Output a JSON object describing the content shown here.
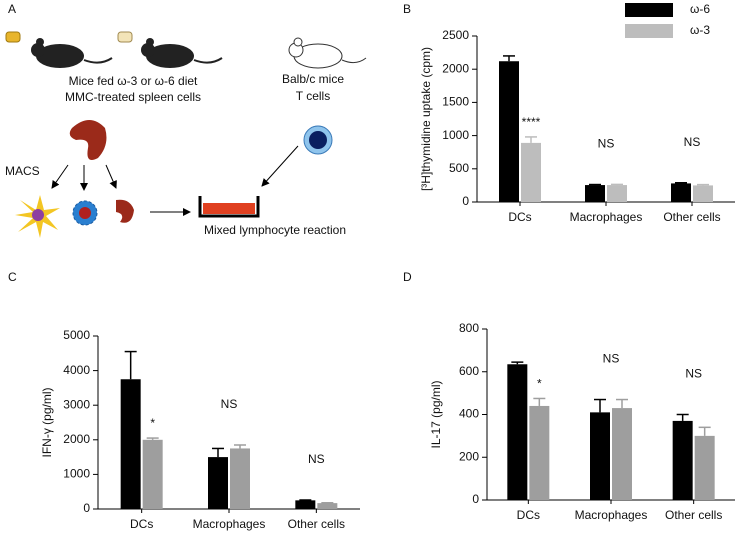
{
  "diagram": {
    "panel": "A",
    "mice_label_1": "Mice fed ω-3 or ω-6 diet",
    "mice_label_2": "MMC-treated spleen cells",
    "balb_label_1": "Balb/c mice",
    "balb_label_2": "T cells",
    "macs": "MACS",
    "reaction": "Mixed lymphocyte reaction"
  },
  "chart_data": [
    {
      "type": "bar",
      "panel": "B",
      "ylabel": "[³H]thymidine uptake (cpm)",
      "categories": [
        "DCs",
        "Macrophages",
        "Other cells"
      ],
      "series": [
        {
          "name": "ω-6",
          "color": "#000000",
          "values": [
            2120,
            255,
            280
          ],
          "errors": [
            80,
            8,
            10
          ]
        },
        {
          "name": "ω-3",
          "color": "#bdbdbd",
          "values": [
            890,
            255,
            250
          ],
          "errors": [
            90,
            10,
            12
          ]
        }
      ],
      "annotations": [
        "****",
        "NS",
        "NS"
      ],
      "ylim": [
        0,
        2500
      ],
      "yticks": [
        0,
        500,
        1000,
        1500,
        2000,
        2500
      ],
      "legend": "upper right"
    },
    {
      "type": "bar",
      "panel": "C",
      "ylabel": "IFN-γ (pg/ml)",
      "categories": [
        "DCs",
        "Macrophages",
        "Other cells"
      ],
      "series": [
        {
          "color": "#000000",
          "values": [
            3750,
            1500,
            250
          ],
          "errors": [
            800,
            250,
            10
          ]
        },
        {
          "color": "#9e9e9e",
          "values": [
            2000,
            1750,
            170
          ],
          "errors": [
            50,
            100,
            10
          ]
        }
      ],
      "annotations": [
        "*",
        "NS",
        "NS"
      ],
      "ylim": [
        0,
        5000
      ],
      "yticks": [
        0,
        1000,
        2000,
        3000,
        4000,
        5000
      ]
    },
    {
      "type": "bar",
      "panel": "D",
      "ylabel": "IL-17 (pg/ml)",
      "categories": [
        "DCs",
        "Macrophages",
        "Other cells"
      ],
      "series": [
        {
          "color": "#000000",
          "values": [
            635,
            410,
            370
          ],
          "errors": [
            10,
            60,
            30
          ]
        },
        {
          "color": "#9e9e9e",
          "values": [
            440,
            430,
            300
          ],
          "errors": [
            35,
            40,
            40
          ]
        }
      ],
      "annotations": [
        "*",
        "NS",
        "NS"
      ],
      "ylim": [
        0,
        800
      ],
      "yticks": [
        0,
        200,
        400,
        600,
        800
      ]
    }
  ]
}
